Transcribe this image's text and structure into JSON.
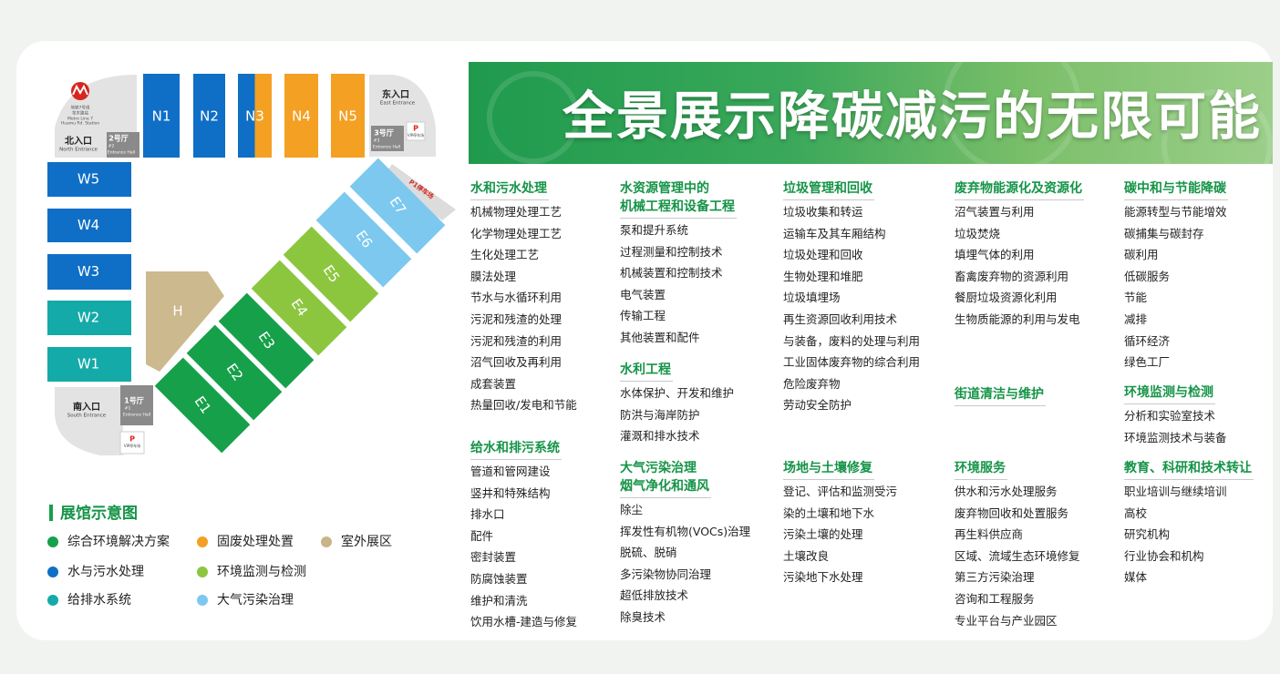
{
  "banner": {
    "title": "全景展示降碳减污的无限可能"
  },
  "map": {
    "metro": [
      "地铁7号线",
      "花木路站",
      "Metro Line 7",
      "Huamu Rd. Station"
    ],
    "north_entrance": [
      "北入口",
      "North Entrance"
    ],
    "hall2": [
      "2号厅",
      "#2",
      "Entrance Hall"
    ],
    "east_entrance": [
      "东入口",
      "East Entrance"
    ],
    "hall3": [
      "3号厅",
      "#3",
      "Entrance Hall"
    ],
    "vip_parking_east": [
      "P",
      "VIP停车场"
    ],
    "parking_p1": "P1停车场",
    "south_entrance": [
      "南入口",
      "South Entrance"
    ],
    "hall1": [
      "1号厅",
      "#1",
      "Entrance Hall"
    ],
    "vip_parking_south": [
      "P",
      "VIP停车场"
    ],
    "north_halls": [
      {
        "label": "N1",
        "colors": [
          "#0f6fc6"
        ]
      },
      {
        "label": "N2",
        "colors": [
          "#0f6fc6"
        ]
      },
      {
        "label": "N3",
        "colors": [
          "#0f6fc6",
          "#f4a023"
        ]
      },
      {
        "label": "N4",
        "colors": [
          "#f4a023"
        ]
      },
      {
        "label": "N5",
        "colors": [
          "#f4a023"
        ]
      }
    ],
    "west_halls": [
      {
        "label": "W5",
        "color": "#0f6fc6"
      },
      {
        "label": "W4",
        "color": "#0f6fc6"
      },
      {
        "label": "W3",
        "color": "#0f6fc6"
      },
      {
        "label": "W2",
        "color": "#14aaa8"
      },
      {
        "label": "W1",
        "color": "#14aaa8"
      }
    ],
    "east_halls": [
      {
        "label": "E1",
        "color": "#16a04a"
      },
      {
        "label": "E2",
        "color": "#16a04a"
      },
      {
        "label": "E3",
        "color": "#16a04a"
      },
      {
        "label": "E4",
        "color": "#8cc63f"
      },
      {
        "label": "E5",
        "color": "#8cc63f"
      },
      {
        "label": "E6",
        "color": "#7cc8ef"
      },
      {
        "label": "E7",
        "color": "#7cc8ef"
      }
    ],
    "outdoor_hall": {
      "label": "H",
      "color": "#cdb98e"
    },
    "legend": {
      "title": "展馆示意图",
      "items": [
        {
          "label": "综合环境解决方案",
          "color": "#16a04a"
        },
        {
          "label": "固废处理处置",
          "color": "#f4a023"
        },
        {
          "label": "室外展区",
          "color": "#c9b48a"
        },
        {
          "label": "水与污水处理",
          "color": "#0f6fc6"
        },
        {
          "label": "环境监测与检测",
          "color": "#8cc63f"
        },
        {
          "label": "给排水系统",
          "color": "#14aaa8"
        },
        {
          "label": "大气污染治理",
          "color": "#7cc8ef"
        }
      ]
    }
  },
  "columns": [
    [
      {
        "title": [
          "水和污水处理"
        ],
        "items": [
          "机械物理处理工艺",
          "化学物理处理工艺",
          "生化处理工艺",
          "膜法处理",
          "节水与水循环利用",
          "污泥和残渣的处理",
          "污泥和残渣的利用",
          "沼气回收及再利用",
          "成套装置",
          "热量回收/发电和节能"
        ]
      },
      {
        "title": [
          "给水和排污系统"
        ],
        "items": [
          "管道和管网建设",
          "竖井和特殊结构",
          "排水口",
          "配件",
          "密封装置",
          "防腐蚀装置",
          "维护和清洗",
          "饮用水槽-建造与修复"
        ]
      }
    ],
    [
      {
        "title": [
          "水资源管理中的",
          "机械工程和设备工程"
        ],
        "items": [
          "泵和提升系统",
          "过程测量和控制技术",
          "机械装置和控制技术",
          "电气装置",
          "传输工程",
          "其他装置和配件"
        ]
      },
      {
        "title": [
          "水利工程"
        ],
        "items": [
          "水体保护、开发和维护",
          "防洪与海岸防护",
          "灌溉和排水技术"
        ]
      },
      {
        "title": [
          "大气污染治理",
          "烟气净化和通风"
        ],
        "items": [
          "除尘",
          "挥发性有机物(VOCs)治理",
          "脱硫、脱硝",
          "多污染物协同治理",
          "超低排放技术",
          "除臭技术"
        ]
      }
    ],
    [
      {
        "title": [
          "垃圾管理和回收"
        ],
        "items": [
          "垃圾收集和转运",
          "运输车及其车厢结构",
          "垃圾处理和回收",
          "生物处理和堆肥",
          "垃圾填埋场",
          "再生资源回收利用技术",
          "与装备，废料的处理与利用",
          "工业固体废弃物的综合利用",
          "危险废弃物",
          "劳动安全防护"
        ]
      },
      {
        "title": [
          "场地与土壤修复"
        ],
        "items": [
          "登记、评估和监测受污",
          "染的土壤和地下水",
          "污染土壤的处理",
          "土壤改良",
          "污染地下水处理"
        ]
      }
    ],
    [
      {
        "title": [
          "废弃物能源化及资源化"
        ],
        "items": [
          "沼气装置与利用",
          "垃圾焚烧",
          "填埋气体的利用",
          "畜禽废弃物的资源利用",
          "餐厨垃圾资源化利用",
          "生物质能源的利用与发电"
        ]
      },
      {
        "title": [
          "街道清洁与维护"
        ],
        "items": []
      },
      {
        "title": [
          "环境服务"
        ],
        "items": [
          "供水和污水处理服务",
          "废弃物回收和处置服务",
          "再生料供应商",
          "区域、流域生态环境修复",
          "第三方污染治理",
          "咨询和工程服务",
          "专业平台与产业园区"
        ]
      }
    ],
    [
      {
        "title": [
          "碳中和与节能降碳"
        ],
        "items": [
          "能源转型与节能增效",
          "碳捕集与碳封存",
          "碳利用",
          "低碳服务",
          "节能",
          "减排",
          "循环经济",
          "绿色工厂"
        ]
      },
      {
        "title": [
          "环境监测与检测"
        ],
        "items": [
          "分析和实验室技术",
          "环境监测技术与装备"
        ]
      },
      {
        "title": [
          "教育、科研和技术转让"
        ],
        "items": [
          "职业培训与继续培训",
          "高校",
          "研究机构",
          "行业协会和机构",
          "媒体"
        ]
      }
    ]
  ]
}
